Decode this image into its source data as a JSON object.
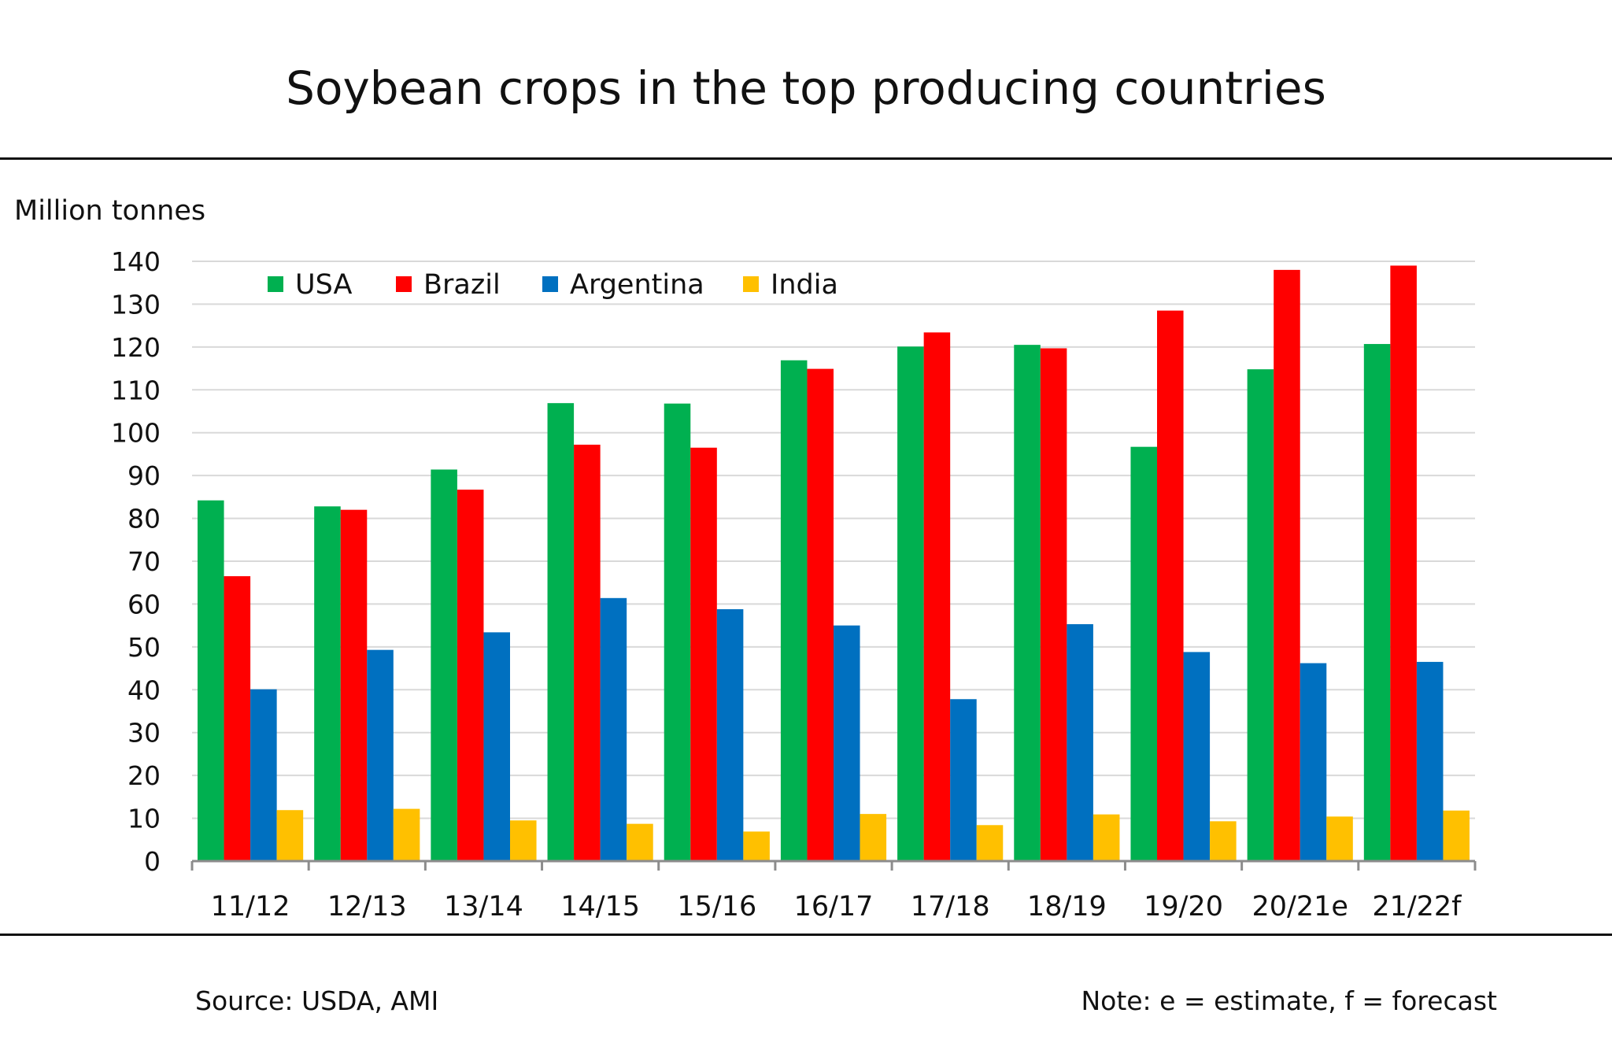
{
  "title": "Soybean crops in the top producing countries",
  "footer": {
    "source": "Source: USDA, AMI",
    "note": "Note: e = estimate, f = forecast"
  },
  "colors": {
    "background": "#ffffff",
    "gridline": "#d9d9d9",
    "axis": "#8c8c8c",
    "rule": "#111111"
  },
  "chart_data": {
    "type": "bar",
    "ylabel": "Million tonnes",
    "xlabel": "",
    "ylim": [
      0,
      140
    ],
    "yticks": [
      0,
      10,
      20,
      30,
      40,
      50,
      60,
      70,
      80,
      90,
      100,
      110,
      120,
      130,
      140
    ],
    "grid": true,
    "legend_position": "top-left",
    "categories": [
      "11/12",
      "12/13",
      "13/14",
      "14/15",
      "15/16",
      "16/17",
      "17/18",
      "18/19",
      "19/20",
      "20/21e",
      "21/22f"
    ],
    "series": [
      {
        "name": "USA",
        "color": "#00b050",
        "values": [
          84.2,
          82.8,
          91.4,
          106.9,
          106.8,
          116.9,
          120.1,
          120.5,
          96.7,
          114.8,
          120.7
        ]
      },
      {
        "name": "Brazil",
        "color": "#ff0000",
        "values": [
          66.5,
          82.0,
          86.7,
          97.2,
          96.5,
          114.9,
          123.4,
          119.7,
          128.5,
          138.0,
          139.0
        ]
      },
      {
        "name": "Argentina",
        "color": "#0070c0",
        "values": [
          40.1,
          49.3,
          53.4,
          61.4,
          58.8,
          55.0,
          37.8,
          55.3,
          48.8,
          46.2,
          46.5
        ]
      },
      {
        "name": "India",
        "color": "#ffc000",
        "values": [
          11.9,
          12.2,
          9.5,
          8.7,
          6.9,
          11.0,
          8.4,
          10.9,
          9.3,
          10.4,
          11.8
        ]
      }
    ]
  }
}
